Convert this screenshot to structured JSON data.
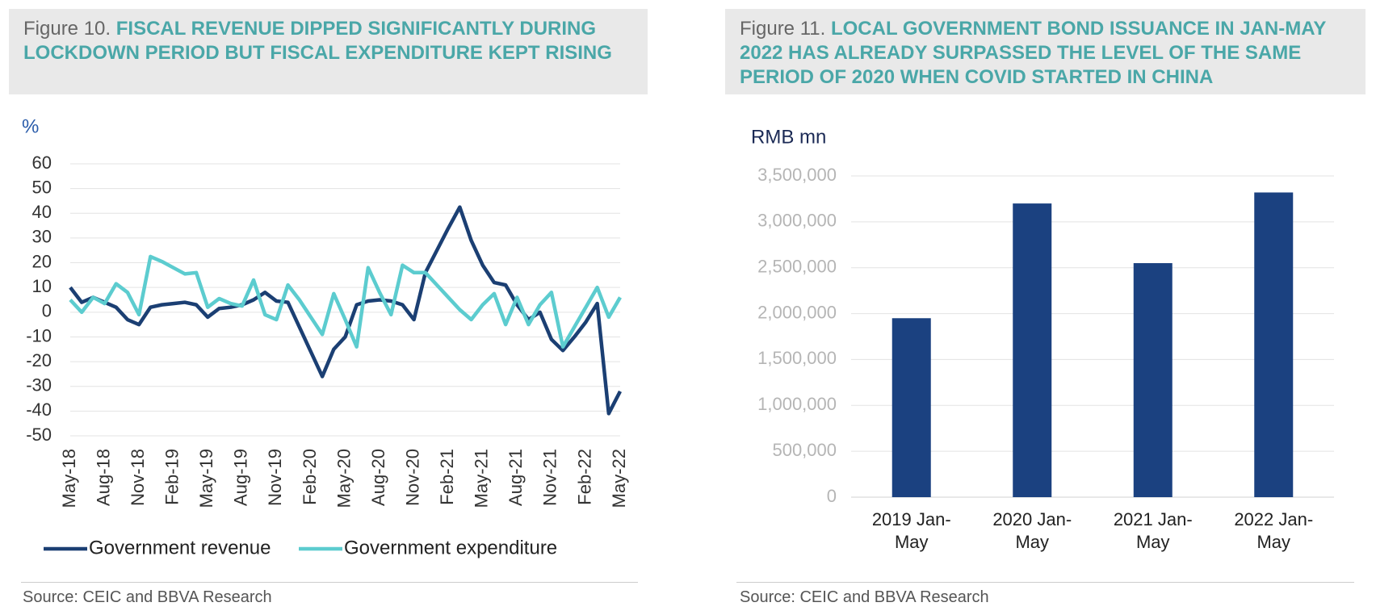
{
  "chart_data": [
    {
      "type": "line",
      "figure_label": "Figure 10.",
      "title": "FISCAL REVENUE DIPPED SIGNIFICANTLY DURING LOCKDOWN PERIOD BUT FISCAL EXPENDITURE KEPT RISING",
      "y_label": "%",
      "categories": [
        "May-18",
        null,
        null,
        "Aug-18",
        null,
        null,
        "Nov-18",
        null,
        null,
        "Feb-19",
        null,
        null,
        "May-19",
        null,
        null,
        "Aug-19",
        null,
        null,
        "Nov-19",
        null,
        null,
        "Feb-20",
        null,
        null,
        "May-20",
        null,
        null,
        "Aug-20",
        null,
        null,
        "Nov-20",
        null,
        null,
        "Feb-21",
        null,
        null,
        "May-21",
        null,
        null,
        "Aug-21",
        null,
        null,
        "Nov-21",
        null,
        null,
        "Feb-22",
        null,
        null,
        "May-22"
      ],
      "series": [
        {
          "name": "Government revenue",
          "color": "#1b3f73",
          "values": [
            10,
            4,
            6,
            4,
            2,
            -3,
            -5,
            2,
            3,
            3.5,
            4,
            3,
            -2,
            1.5,
            2,
            3,
            5,
            8,
            4.5,
            4,
            -6,
            -16,
            -26,
            -15,
            -10,
            3,
            4.5,
            5,
            4.5,
            3,
            -3,
            16,
            25,
            34,
            42.5,
            29,
            19,
            12,
            11,
            3,
            -3,
            0,
            -11,
            -15.5,
            -10,
            -4,
            3.5,
            -41,
            -32
          ]
        },
        {
          "name": "Government expenditure",
          "color": "#5ccccf",
          "values": [
            5,
            0,
            6,
            3.5,
            11.5,
            8,
            -1,
            22.5,
            20.5,
            18,
            15.5,
            16,
            2,
            5.5,
            3.5,
            2.5,
            13,
            -1,
            -3,
            11,
            5,
            -2,
            -9,
            7.5,
            -3,
            -14,
            18,
            8,
            -1,
            19,
            16,
            16,
            11,
            6,
            1,
            -3,
            3,
            7.5,
            -5,
            6,
            -5,
            3,
            8,
            -14,
            -6,
            2,
            10,
            -2,
            6
          ]
        }
      ],
      "ylim": [
        -50,
        60
      ],
      "yticks": [
        60,
        50,
        40,
        30,
        20,
        10,
        0,
        -10,
        -20,
        -30,
        -40,
        -50
      ],
      "grid": true,
      "source": "Source: CEIC and BBVA Research"
    },
    {
      "type": "bar",
      "figure_label": "Figure 11.",
      "title": "LOCAL GOVERNMENT BOND ISSUANCE IN JAN-MAY 2022 HAS ALREADY SURPASSED THE LEVEL OF THE SAME PERIOD OF 2020 WHEN COVID STARTED IN CHINA",
      "y_label": "RMB mn",
      "categories": [
        "2019 Jan-May",
        "2020 Jan-May",
        "2021 Jan-May",
        "2022 Jan-May"
      ],
      "values": [
        1950000,
        3200000,
        2550000,
        3320000
      ],
      "color": "#1b4180",
      "ylim": [
        0,
        3500000
      ],
      "yticks": [
        {
          "value": 3500000,
          "label": "3,500,000"
        },
        {
          "value": 3000000,
          "label": "3,000,000"
        },
        {
          "value": 2500000,
          "label": "2,500,000"
        },
        {
          "value": 2000000,
          "label": "2,000,000"
        },
        {
          "value": 1500000,
          "label": "1,500,000"
        },
        {
          "value": 1000000,
          "label": "1,000,000"
        },
        {
          "value": 500000,
          "label": "500,000"
        },
        0
      ],
      "grid": true,
      "source": "Source: CEIC and BBVA Research"
    }
  ]
}
